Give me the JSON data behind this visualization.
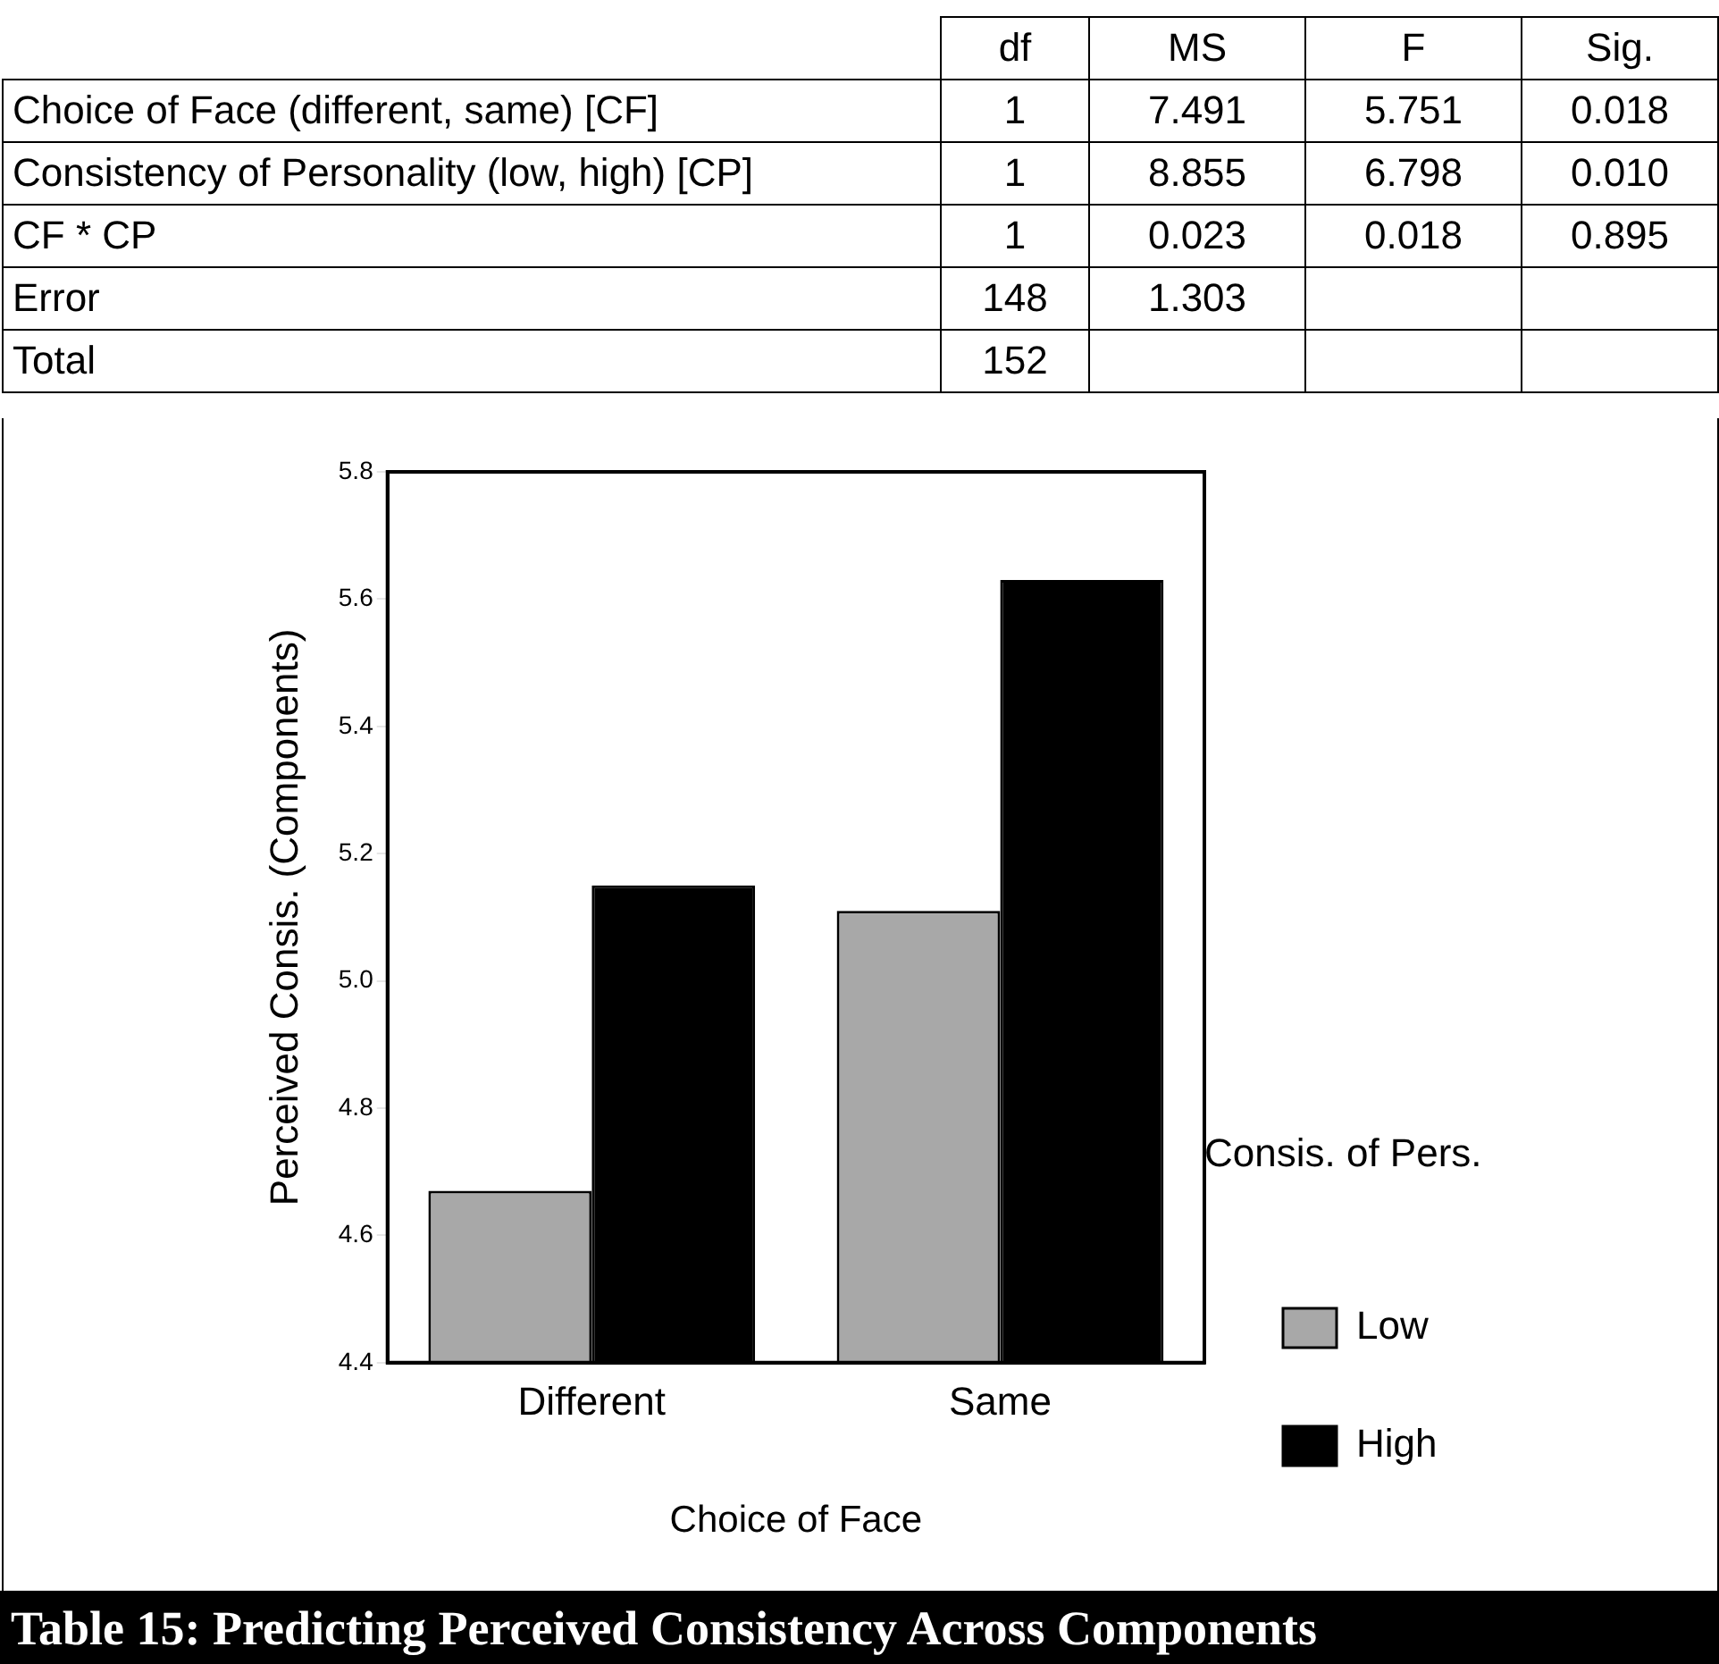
{
  "chart_data": [
    {
      "type": "other",
      "data_labels": true,
      "categories": [
        "Choice of Face (different, same) [CF]",
        "Consistency of Personality (low, high) [CP]",
        "CF * CP",
        "Error",
        "Total"
      ],
      "series": [
        {
          "name": "df",
          "values": [
            1,
            1,
            1,
            148,
            152
          ]
        },
        {
          "name": "MS",
          "values": [
            7.491,
            8.855,
            0.023,
            1.303,
            null
          ]
        },
        {
          "name": "F",
          "values": [
            5.751,
            6.798,
            0.018,
            null,
            null
          ]
        },
        {
          "name": "Sig.",
          "values": [
            0.018,
            0.01,
            0.895,
            null,
            null
          ],
          "value_labels": [
            "0.018",
            "0.010",
            "0.895",
            null,
            null
          ]
        }
      ]
    },
    {
      "type": "bar",
      "xlabel": "Choice of Face",
      "ylabel": "Perceived Consis. (Components)",
      "legend_title": "Consis. of Pers.",
      "legend": "right",
      "categories": [
        "Different",
        "Same"
      ],
      "series": [
        {
          "name": "Low",
          "color": "#a8a8a8",
          "values": [
            4.67,
            5.11
          ]
        },
        {
          "name": "High",
          "color": "#000000",
          "values": [
            5.15,
            5.63
          ]
        }
      ],
      "ylim": [
        4.4,
        5.8
      ],
      "yticks": [
        4.4,
        4.6,
        4.8,
        {
          "value": 5,
          "label": "5.0"
        },
        5.2,
        5.4,
        5.6,
        5.8
      ],
      "grid": false,
      "annotations": [
        "Table 15: Predicting Perceived Consistency Across Components"
      ]
    }
  ]
}
